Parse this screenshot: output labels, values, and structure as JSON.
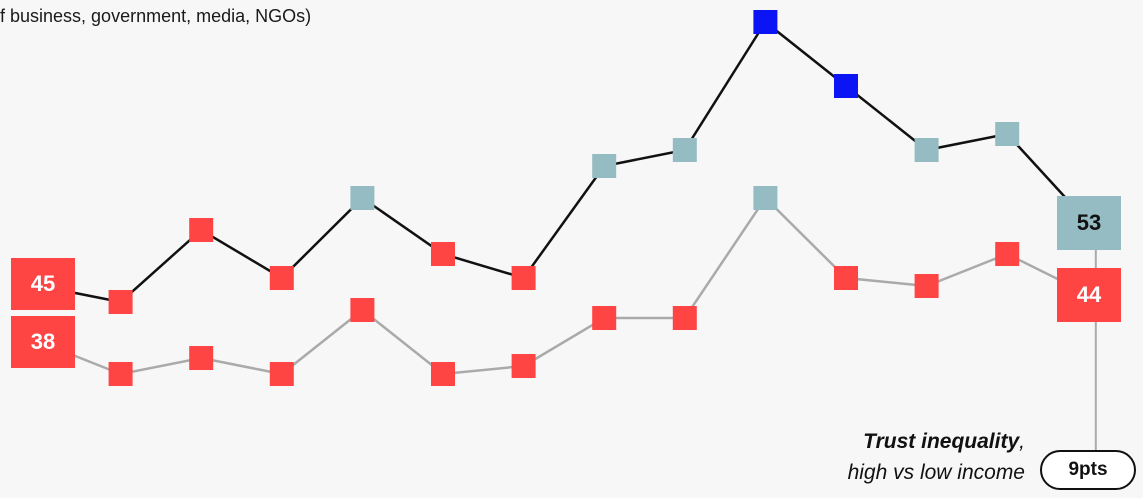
{
  "subtitle": "f business, government, media, NGOs)",
  "note": {
    "title": "Trust inequality",
    "comma": ",",
    "line2": "high vs low income"
  },
  "gap_badge": "9pts",
  "colors": {
    "distrust": "#ff4444",
    "neutral": "#94bcc2",
    "trust": "#0a14f5",
    "high_line": "#111111",
    "low_line": "#aaaaaa"
  },
  "chart_data": {
    "type": "line",
    "x_count": 14,
    "series": [
      {
        "values": [
          45,
          43,
          52,
          46,
          56,
          49,
          46,
          60,
          62,
          78,
          70,
          62,
          64,
          53
        ],
        "categories": [
          "distrust",
          "distrust",
          "distrust",
          "distrust",
          "neutral",
          "distrust",
          "distrust",
          "neutral",
          "neutral",
          "trust",
          "trust",
          "neutral",
          "neutral",
          "neutral"
        ],
        "start_label": "45",
        "end_label": "53"
      },
      {
        "values": [
          38,
          34,
          36,
          34,
          42,
          34,
          35,
          41,
          41,
          56,
          46,
          45,
          49,
          44
        ],
        "categories": [
          "distrust",
          "distrust",
          "distrust",
          "distrust",
          "distrust",
          "distrust",
          "distrust",
          "distrust",
          "distrust",
          "neutral",
          "distrust",
          "distrust",
          "distrust",
          "distrust"
        ],
        "start_label": "38",
        "end_label": "44"
      }
    ]
  }
}
